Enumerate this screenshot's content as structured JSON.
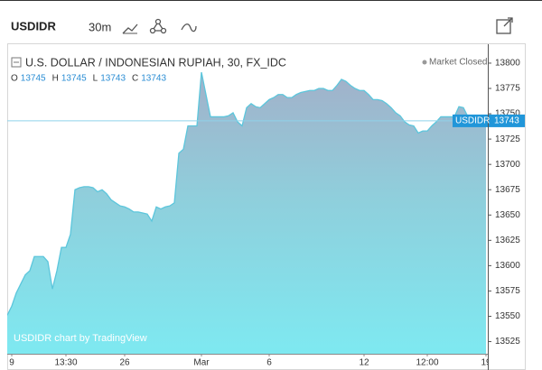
{
  "chart_data": {
    "type": "area",
    "symbol": "USDIDR",
    "interval": "30m",
    "title": "U.S. DOLLAR / INDONESIAN RUPIAH, 30, FX_IDC",
    "status": "Market Closed",
    "ohlc": [
      {
        "label": "O",
        "value": 13745
      },
      {
        "label": "H",
        "value": 13745
      },
      {
        "label": "L",
        "value": 13743
      },
      {
        "label": "C",
        "value": 13743
      }
    ],
    "watermark": "USDIDR chart by TradingView",
    "categories": [
      null,
      "9",
      null,
      null,
      null,
      null,
      null,
      null,
      null,
      null,
      null,
      null,
      null,
      "13:30",
      null,
      null,
      null,
      null,
      null,
      null,
      null,
      null,
      null,
      null,
      null,
      null,
      "26",
      null,
      null,
      null,
      null,
      null,
      null,
      null,
      null,
      null,
      null,
      null,
      null,
      null,
      null,
      null,
      null,
      "Mar",
      null,
      null,
      null,
      null,
      null,
      null,
      null,
      null,
      null,
      null,
      null,
      null,
      null,
      null,
      "6",
      null,
      null,
      null,
      null,
      null,
      null,
      null,
      null,
      null,
      null,
      null,
      null,
      null,
      null,
      null,
      null,
      null,
      null,
      null,
      null,
      "12",
      null,
      null,
      null,
      null,
      null,
      null,
      null,
      null,
      null,
      null,
      null,
      null,
      null,
      "12:00",
      null,
      null,
      null,
      null,
      null,
      null,
      null,
      null,
      null,
      null,
      null,
      null,
      "19"
    ],
    "series": [
      {
        "name": "USDIDR",
        "color": "#5cc6dc",
        "values": [
          13551,
          13560,
          13573,
          13582,
          13591,
          13595,
          13609,
          13609,
          13609,
          13604,
          13577,
          13595,
          13618,
          13618,
          13631,
          13675,
          13677,
          13678,
          13678,
          13677,
          13673,
          13675,
          13671,
          13665,
          13662,
          13659,
          13658,
          13656,
          13653,
          13653,
          13652,
          13651,
          13644,
          13658,
          13656,
          13658,
          13659,
          13662,
          13711,
          13715,
          13738,
          13738,
          13738,
          13791,
          13769,
          13747,
          13747,
          13747,
          13747,
          13748,
          13751,
          13742,
          13738,
          13756,
          13760,
          13757,
          13756,
          13760,
          13764,
          13766,
          13769,
          13769,
          13766,
          13766,
          13769,
          13771,
          13772,
          13773,
          13773,
          13775,
          13775,
          13773,
          13773,
          13778,
          13784,
          13782,
          13778,
          13775,
          13773,
          13773,
          13769,
          13764,
          13764,
          13763,
          13760,
          13756,
          13751,
          13748,
          13742,
          13739,
          13738,
          13731,
          13733,
          13733,
          13738,
          13742,
          13747,
          13747,
          13747,
          13747,
          13757,
          13756,
          13747,
          13742,
          13744,
          13744,
          13743
        ]
      }
    ],
    "ylim": [
      13513,
      13816
    ],
    "yticks": [
      13525,
      13550,
      13575,
      13600,
      13625,
      13650,
      13675,
      13700,
      13725,
      13750,
      13775,
      13800
    ],
    "grid": false
  }
}
